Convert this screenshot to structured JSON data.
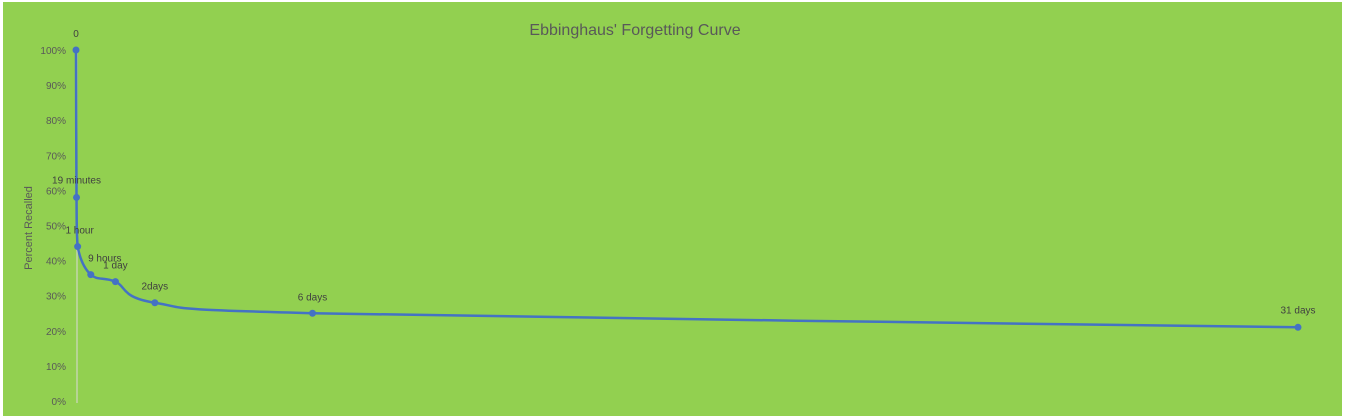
{
  "chart_data": {
    "type": "line",
    "title": "Ebbinghaus' Forgetting Curve",
    "xlabel": "",
    "ylabel": "Percent Recalled",
    "x_units": "days",
    "xlim": [
      0,
      31
    ],
    "ylim": [
      0,
      100
    ],
    "y_ticks": [
      "0%",
      "10%",
      "20%",
      "30%",
      "40%",
      "50%",
      "60%",
      "70%",
      "80%",
      "90%",
      "100%"
    ],
    "x_tick_labels_shown": false,
    "grid": false,
    "smoothed": true,
    "points": [
      {
        "label": "0",
        "x": 0,
        "y": 100
      },
      {
        "label": "19 minutes",
        "x": 0.0132,
        "y": 58
      },
      {
        "label": "1 hour",
        "x": 0.0417,
        "y": 44
      },
      {
        "label": "9 hours",
        "x": 0.375,
        "y": 36
      },
      {
        "label": "1 day",
        "x": 1,
        "y": 34
      },
      {
        "label": "2days",
        "x": 2,
        "y": 28
      },
      {
        "label": "6 days",
        "x": 6,
        "y": 25
      },
      {
        "label": "31 days",
        "x": 31,
        "y": 21
      }
    ],
    "colors": {
      "background": "#92D050",
      "line": "#4472C4",
      "title": "#595959",
      "label": "#404040",
      "tick": "#595959"
    }
  }
}
